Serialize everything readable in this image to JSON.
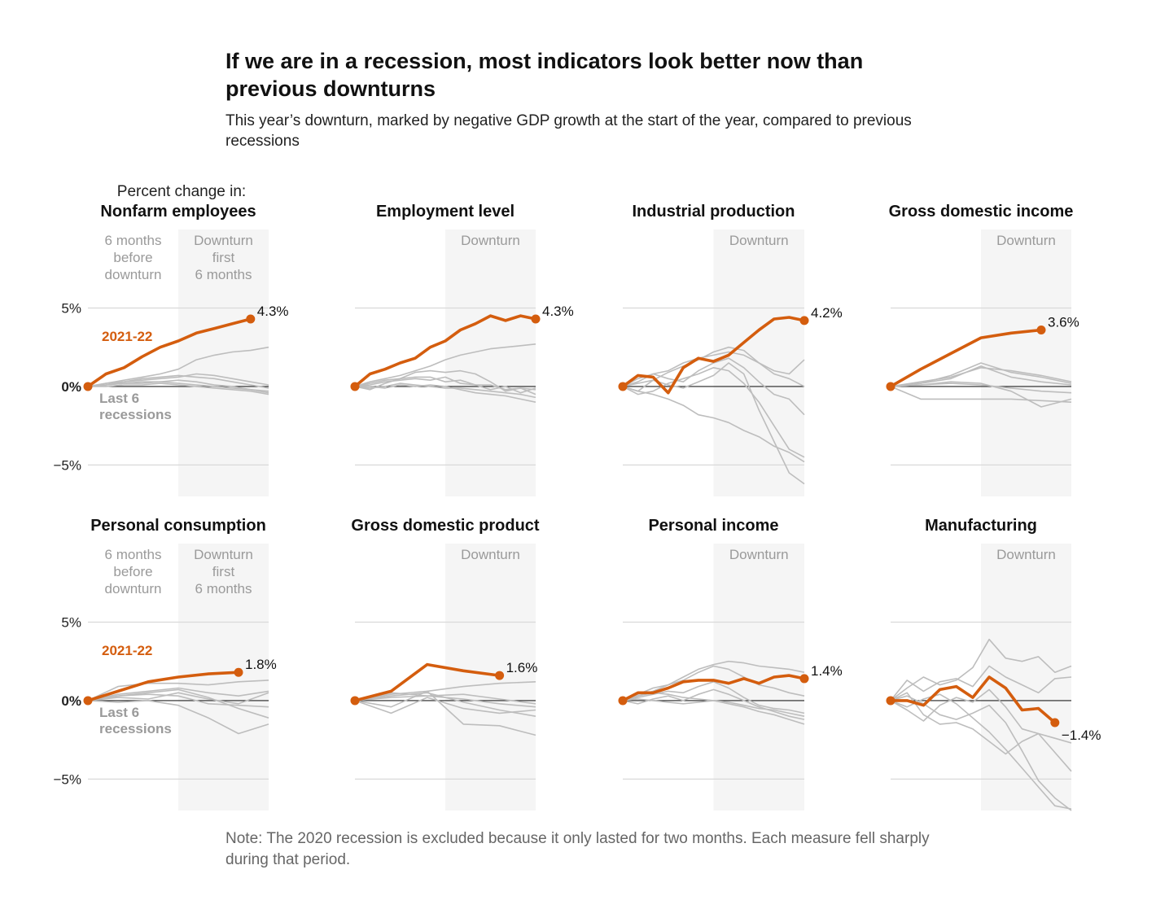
{
  "title": "If we are in a recession, most indicators look better now than previous downturns",
  "subtitle": "This year’s downturn, marked by negative GDP growth at the start of the year, compared to previous recessions",
  "note": "Note: The 2020 recession is excluded because it only lasted for two months. Each measure fell sharply during that period.",
  "labels": {
    "percent_change": "Percent change in:",
    "before": [
      "6 months",
      "before",
      "downturn"
    ],
    "during": [
      "Downturn",
      "first",
      "6 months"
    ],
    "downturn": "Downturn",
    "current": "2021-22",
    "past": [
      "Last 6",
      "recessions"
    ]
  },
  "colors": {
    "current": "#d45d0e",
    "past": "#bdbdbd",
    "shade": "#f5f5f5",
    "grid": "#d9d9d9",
    "baseline": "#222222"
  },
  "chart_data": [
    {
      "type": "line",
      "title": "Nonfarm employees",
      "ylim": [
        -7,
        10
      ],
      "yticks": [
        "5%",
        "0%",
        "−5%"
      ],
      "current": {
        "name": "2021-22",
        "values": [
          0,
          0.8,
          1.2,
          1.9,
          2.5,
          2.9,
          3.4,
          3.7,
          4.0,
          4.3
        ],
        "label": "4.3%"
      },
      "past": [
        [
          0,
          0.2,
          0.4,
          0.6,
          0.8,
          1.1,
          1.7,
          2.0,
          2.2,
          2.3,
          2.5
        ],
        [
          0,
          0.1,
          0.3,
          0.4,
          0.5,
          0.6,
          0.8,
          0.7,
          0.5,
          0.3,
          0.1
        ],
        [
          0,
          0.2,
          0.3,
          0.5,
          0.6,
          0.7,
          0.6,
          0.5,
          0.3,
          0.1,
          -0.1
        ],
        [
          0,
          0.1,
          0.2,
          0.3,
          0.3,
          0.2,
          0.1,
          0.0,
          -0.1,
          -0.2,
          -0.3
        ],
        [
          0,
          0.1,
          0.2,
          0.2,
          0.3,
          0.4,
          0.3,
          0.1,
          0.0,
          -0.2,
          -0.4
        ],
        [
          0,
          0.0,
          0.1,
          0.1,
          0.2,
          0.1,
          0.0,
          -0.1,
          -0.2,
          -0.3,
          -0.5
        ]
      ]
    },
    {
      "type": "line",
      "title": "Employment level",
      "ylim": [
        -7,
        10
      ],
      "current": {
        "name": "2021-22",
        "values": [
          0,
          0.8,
          1.1,
          1.5,
          1.8,
          2.5,
          2.9,
          3.6,
          4.0,
          4.5,
          4.2,
          4.5,
          4.3
        ],
        "label": "4.3%"
      },
      "past": [
        [
          0,
          0.3,
          0.5,
          0.7,
          1.0,
          1.3,
          1.7,
          2.0,
          2.2,
          2.4,
          2.5,
          2.6,
          2.7
        ],
        [
          0,
          -0.2,
          0.2,
          0.5,
          0.9,
          1.0,
          0.9,
          1.0,
          0.8,
          0.3,
          -0.3,
          -0.1,
          -0.2
        ],
        [
          0,
          0.1,
          0.3,
          0.4,
          0.5,
          0.4,
          0.6,
          0.2,
          0.1,
          -0.2,
          0.0,
          -0.4,
          -0.1
        ],
        [
          0,
          0.2,
          0.4,
          0.5,
          0.6,
          0.6,
          0.3,
          0.4,
          0.1,
          0.1,
          -0.2,
          -0.1,
          -0.5
        ],
        [
          0,
          -0.1,
          0.0,
          0.2,
          0.1,
          0.0,
          -0.1,
          -0.1,
          -0.2,
          -0.3,
          -0.4,
          -0.5,
          -0.7
        ],
        [
          0,
          0.0,
          -0.1,
          0.1,
          0.0,
          0.1,
          0.0,
          -0.2,
          -0.4,
          -0.5,
          -0.6,
          -0.8,
          -1.0
        ]
      ]
    },
    {
      "type": "line",
      "title": "Industrial production",
      "ylim": [
        -7,
        10
      ],
      "current": {
        "name": "2021-22",
        "values": [
          0,
          0.7,
          0.6,
          -0.4,
          1.2,
          1.8,
          1.6,
          2.0,
          2.8,
          3.6,
          4.3,
          4.4,
          4.2
        ],
        "label": "4.2%"
      },
      "past": [
        [
          0,
          0.5,
          0.8,
          1.0,
          1.5,
          1.8,
          2.0,
          2.2,
          2.0,
          1.5,
          1.0,
          0.8,
          1.7
        ],
        [
          0,
          -0.3,
          0.4,
          0.9,
          1.3,
          1.7,
          2.2,
          2.5,
          2.3,
          1.5,
          0.8,
          0.5,
          0.0
        ],
        [
          0,
          0.3,
          0.8,
          0.5,
          0.3,
          1.0,
          1.5,
          1.8,
          1.2,
          0.3,
          -0.5,
          -0.8,
          -1.8
        ],
        [
          0,
          -0.5,
          -0.3,
          0.2,
          0.5,
          0.8,
          1.2,
          1.0,
          0.2,
          -1.0,
          -2.5,
          -4.0,
          -4.5
        ],
        [
          0,
          0.2,
          0.4,
          0.1,
          -0.1,
          0.3,
          0.7,
          1.5,
          0.8,
          -1.5,
          -3.5,
          -5.5,
          -6.2
        ],
        [
          0,
          -0.3,
          -0.5,
          -0.8,
          -1.2,
          -1.8,
          -2.0,
          -2.3,
          -2.8,
          -3.2,
          -3.8,
          -4.2,
          -4.8
        ]
      ]
    },
    {
      "type": "line",
      "title": "Gross domestic income",
      "ylim": [
        -7,
        10
      ],
      "current": {
        "name": "2021-22",
        "values": [
          0,
          1.1,
          2.1,
          3.1,
          3.4,
          3.6
        ],
        "label": "3.6%"
      },
      "past": [
        [
          0,
          0.3,
          0.6,
          1.2,
          1.0,
          0.7,
          0.3
        ],
        [
          0,
          0.2,
          0.7,
          1.5,
          0.9,
          0.6,
          0.2
        ],
        [
          0,
          0.2,
          0.5,
          1.3,
          0.6,
          0.3,
          0.1
        ],
        [
          0,
          0.1,
          0.3,
          0.2,
          -0.3,
          -1.3,
          -0.8
        ],
        [
          0,
          -0.8,
          -0.8,
          -0.8,
          -0.8,
          -0.9,
          -1.0
        ],
        [
          0,
          0.1,
          0.2,
          0.1,
          -0.1,
          -0.3,
          -0.4
        ]
      ]
    },
    {
      "type": "line",
      "title": "Personal consumption",
      "ylim": [
        -7,
        10
      ],
      "yticks": [
        "5%",
        "0%",
        "−5%"
      ],
      "current": {
        "name": "2021-22",
        "values": [
          0,
          0.6,
          1.2,
          1.5,
          1.7,
          1.8
        ],
        "label": "1.8%"
      },
      "past": [
        [
          0,
          0.9,
          1.1,
          1.1,
          1.0,
          1.2,
          1.3
        ],
        [
          0,
          0.4,
          0.6,
          0.8,
          0.5,
          0.3,
          0.6
        ],
        [
          0,
          0.3,
          0.4,
          0.3,
          -0.2,
          -0.3,
          -0.4
        ],
        [
          0,
          0.2,
          0.1,
          0.5,
          0.1,
          -0.2,
          0.5
        ],
        [
          0,
          -0.1,
          0.0,
          -0.3,
          -1.1,
          -2.1,
          -1.5
        ],
        [
          0,
          0.3,
          0.5,
          0.7,
          0.2,
          -0.5,
          -1.1
        ]
      ]
    },
    {
      "type": "line",
      "title": "Gross domestic product",
      "ylim": [
        -7,
        10
      ],
      "current": {
        "name": "2021-22",
        "values": [
          0,
          0.6,
          2.3,
          1.9,
          1.6
        ],
        "label": "1.6%"
      },
      "past": [
        [
          0,
          0.4,
          0.6,
          0.9,
          1.1,
          1.2
        ],
        [
          0,
          0.5,
          0.3,
          0.4,
          0.1,
          -0.2
        ],
        [
          0,
          0.3,
          0.5,
          -0.1,
          -0.6,
          -1.0
        ],
        [
          0,
          -0.4,
          0.6,
          -1.5,
          -1.6,
          -2.2
        ],
        [
          0,
          -0.8,
          0.2,
          -0.5,
          -0.8,
          -0.6
        ],
        [
          0,
          0.2,
          0.3,
          0.1,
          -0.2,
          -0.4
        ]
      ]
    },
    {
      "type": "line",
      "title": "Personal income",
      "ylim": [
        -7,
        10
      ],
      "current": {
        "name": "2021-22",
        "values": [
          0,
          0.5,
          0.5,
          0.8,
          1.2,
          1.3,
          1.3,
          1.1,
          1.4,
          1.1,
          1.5,
          1.6,
          1.4
        ],
        "label": "1.4%"
      },
      "past": [
        [
          0,
          0.3,
          0.6,
          1.0,
          1.5,
          2.0,
          2.3,
          2.5,
          2.4,
          2.2,
          2.1,
          2.0,
          1.8
        ],
        [
          0,
          0.4,
          0.8,
          1.0,
          1.3,
          1.8,
          2.2,
          2.0,
          1.5,
          1.0,
          0.8,
          0.5,
          0.3
        ],
        [
          0,
          0.2,
          0.4,
          0.6,
          0.5,
          0.9,
          1.2,
          0.8,
          0.2,
          -0.3,
          -0.5,
          -0.6,
          -0.8
        ],
        [
          0,
          -0.2,
          0.1,
          0.3,
          0.0,
          0.4,
          0.7,
          0.4,
          0.0,
          -0.4,
          -0.7,
          -1.0,
          -1.2
        ],
        [
          0,
          0.1,
          0.0,
          -0.1,
          -0.2,
          -0.1,
          0.0,
          -0.2,
          -0.4,
          -0.7,
          -0.9,
          -1.2,
          -1.5
        ],
        [
          0,
          0.3,
          0.5,
          0.4,
          0.2,
          0.1,
          0.0,
          -0.1,
          -0.3,
          -0.5,
          -0.6,
          -0.8,
          -1.0
        ]
      ]
    },
    {
      "type": "line",
      "title": "Manufacturing",
      "ylim": [
        -7,
        10
      ],
      "current": {
        "name": "2021-22",
        "values": [
          0,
          0.0,
          -0.3,
          0.7,
          0.9,
          0.2,
          1.5,
          0.8,
          -0.6,
          -0.5,
          -1.4
        ],
        "label": "−1.4%"
      },
      "past": [
        [
          0,
          0.8,
          1.5,
          1.0,
          1.3,
          2.1,
          3.9,
          2.7,
          2.5,
          2.8,
          1.8,
          2.2
        ],
        [
          0,
          1.3,
          0.6,
          1.2,
          1.4,
          0.9,
          2.2,
          1.5,
          1.0,
          0.5,
          1.4,
          1.5
        ],
        [
          0,
          -0.6,
          -1.3,
          -0.3,
          0.2,
          -0.1,
          0.7,
          -0.4,
          -1.8,
          -2.1,
          -2.4,
          -2.7
        ],
        [
          0,
          0.3,
          -0.2,
          -0.9,
          -1.2,
          -0.8,
          -0.3,
          -1.4,
          -3.2,
          -5.1,
          -6.2,
          -7.0
        ],
        [
          0,
          -0.4,
          0.1,
          0.4,
          -0.2,
          -1.1,
          -2.0,
          -3.1,
          -4.3,
          -5.5,
          -6.7,
          -6.9
        ],
        [
          0,
          0.5,
          -0.9,
          -1.5,
          -1.4,
          -1.8,
          -2.6,
          -3.4,
          -2.6,
          -2.1,
          -3.3,
          -4.5
        ]
      ]
    }
  ]
}
